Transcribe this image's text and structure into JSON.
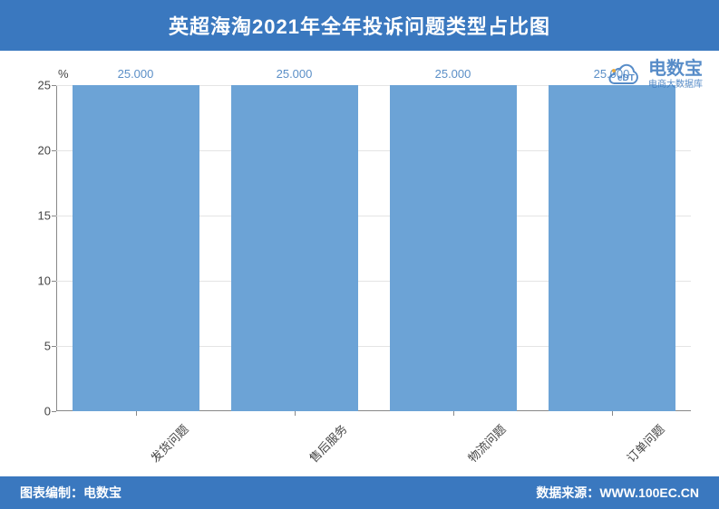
{
  "title": "英超海淘2021年全年投诉问题类型占比图",
  "watermark": {
    "main": "电数宝",
    "sub": "电商大数据库",
    "edt": "eDT"
  },
  "chart": {
    "type": "bar",
    "y_unit": "%",
    "ylim": [
      0,
      25
    ],
    "ytick_step": 5,
    "yticks": [
      0,
      5,
      10,
      15,
      20,
      25
    ],
    "categories": [
      "发货问题",
      "售后服务",
      "物流问题",
      "订单问题"
    ],
    "values": [
      25.0,
      25.0,
      25.0,
      25.0
    ],
    "value_labels": [
      "25.000",
      "25.000",
      "25.000",
      "25.000"
    ],
    "bar_color": "#6ca3d6",
    "bar_width_ratio": 0.8,
    "grid_color": "#e4e4e4",
    "axis_color": "#888888",
    "label_color": "#5b8fc7",
    "tick_font_color": "#444444",
    "background_color": "#ffffff",
    "title_font_size": 22,
    "tick_font_size": 13,
    "x_label_rotation": -45
  },
  "footer": {
    "left_label": "图表编制：",
    "left_value": "电数宝",
    "right_label": "数据来源：",
    "right_value": "WWW.100EC.CN"
  },
  "colors": {
    "header_bg": "#3a78bf",
    "header_text": "#ffffff",
    "footer_bg": "#3a78bf",
    "footer_text": "#ffffff",
    "watermark": "#3a78bf"
  }
}
